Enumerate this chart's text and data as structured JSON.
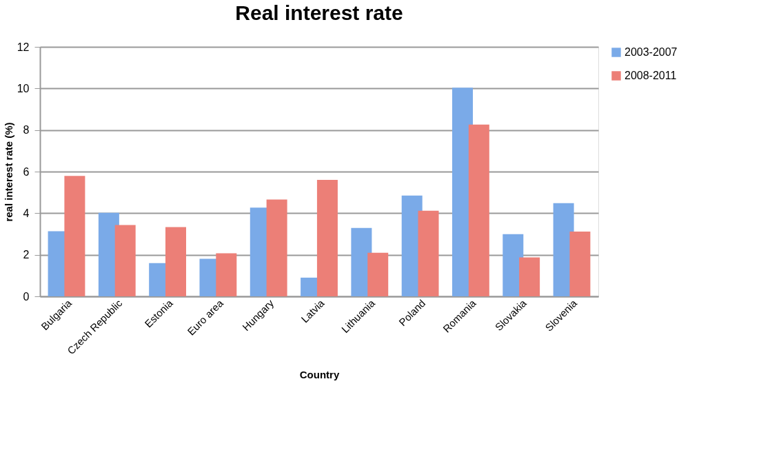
{
  "chart_data": {
    "type": "bar",
    "title": "Real interest rate",
    "xlabel": "Country",
    "ylabel": "real interest rate (%)",
    "categories": [
      "Bulgaria",
      "Czech Republic",
      "Estonia",
      "Euro area",
      "Hungary",
      "Latvia",
      "Lithuania",
      "Poland",
      "Romania",
      "Slovakia",
      "Slovenia"
    ],
    "series": [
      {
        "name": "2003-2007",
        "color": "#7aaae8",
        "values": [
          3.13,
          4.02,
          1.6,
          1.81,
          4.27,
          0.9,
          3.29,
          4.85,
          10.04,
          2.99,
          4.48
        ]
      },
      {
        "name": "2008-2011",
        "color": "#ec7f77",
        "values": [
          5.79,
          3.43,
          3.33,
          2.07,
          4.66,
          5.6,
          2.1,
          4.12,
          8.26,
          1.87,
          3.12
        ]
      }
    ],
    "ylim": [
      0,
      12
    ],
    "yticks": [
      0,
      2,
      4,
      6,
      8,
      10,
      12
    ],
    "grid": "y",
    "legend": "right"
  }
}
